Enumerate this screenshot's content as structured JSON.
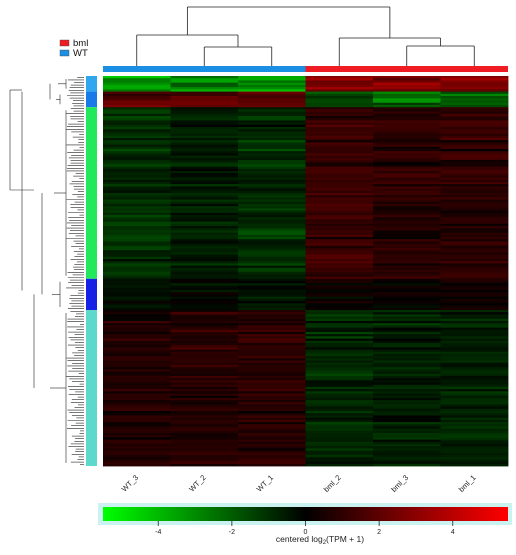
{
  "chart_data": {
    "type": "heatmap",
    "legend": {
      "position": "top-left",
      "items": [
        {
          "label": "bml",
          "color": "#ef1c24"
        },
        {
          "label": "WT",
          "color": "#1b8fe3"
        }
      ]
    },
    "columns": [
      "WT_3",
      "WT_2",
      "WT_1",
      "bml_2",
      "bml_3",
      "bml_1"
    ],
    "column_groups": [
      {
        "name": "WT",
        "columns": [
          "WT_3",
          "WT_2",
          "WT_1"
        ],
        "color": "#1b8fe3"
      },
      {
        "name": "bml",
        "columns": [
          "bml_2",
          "bml_3",
          "bml_1"
        ],
        "color": "#ef1c24"
      }
    ],
    "row_clusters": [
      {
        "color": "#2fa6ee",
        "fraction": 0.04,
        "profile": [
          -3.2,
          -3.0,
          -3.4,
          3.0,
          3.2,
          3.1
        ]
      },
      {
        "color": "#1a7ae8",
        "fraction": 0.04,
        "profile": [
          2.2,
          2.0,
          2.1,
          -1.8,
          -2.4,
          -2.0
        ]
      },
      {
        "color": "#22e85c",
        "fraction": 0.44,
        "profile": [
          -1.1,
          -0.7,
          -1.0,
          1.3,
          0.9,
          1.0
        ]
      },
      {
        "color": "#1522e6",
        "fraction": 0.08,
        "profile": [
          -0.3,
          -0.2,
          -0.4,
          0.3,
          0.2,
          0.4
        ]
      },
      {
        "color": "#5fd8cc",
        "fraction": 0.4,
        "profile": [
          0.8,
          0.9,
          1.0,
          -0.9,
          -0.7,
          -0.8
        ]
      }
    ],
    "color_scale": {
      "min": -5.5,
      "max": 5.5,
      "colors": [
        "#00ff00",
        "#000000",
        "#ff0000"
      ],
      "ticks": [
        -4,
        -2,
        0,
        2,
        4
      ],
      "tick_labels": [
        "-4",
        "-2",
        "0",
        "2",
        "4"
      ],
      "label_prefix": "centered log",
      "label_sub": "2",
      "label_suffix": "(TPM + 1)"
    }
  }
}
